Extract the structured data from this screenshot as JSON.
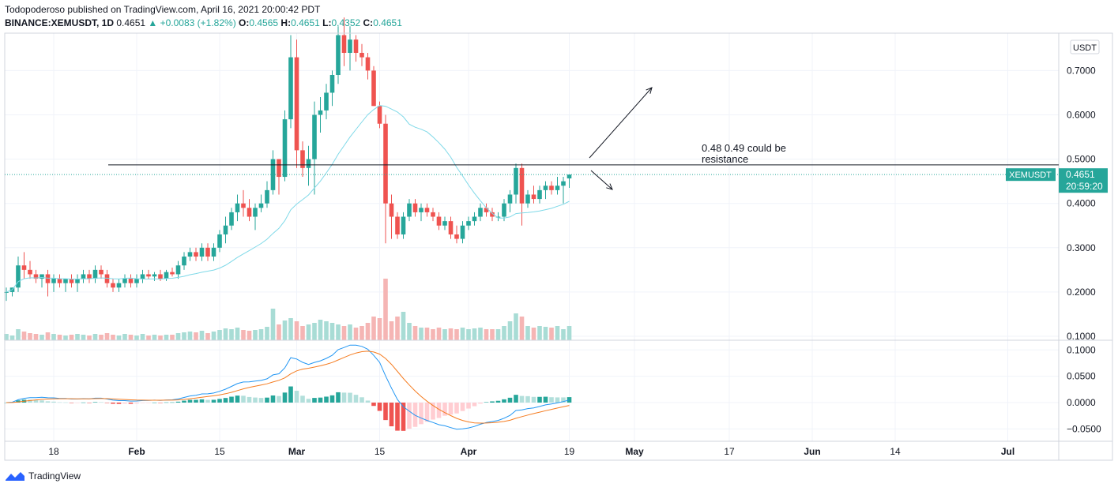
{
  "header": {
    "publisher_line": "Todopoderoso published on TradingView.com, April 16, 2021 20:00:42 PDT",
    "publisher": "Todopoderoso",
    "symbol_line_prefix": "BINANCE:XEMUSDT, 1D",
    "last": "0.4651",
    "change": "▲ +0.0083 (+1.82%)",
    "o_label": "O:",
    "o": "0.4565",
    "h_label": "H:",
    "h": "0.4651",
    "l_label": "L:",
    "l": "0.4352",
    "c_label": "C:",
    "c": "0.4651"
  },
  "footer": {
    "brand": "TradingView"
  },
  "colors": {
    "up": "#26a69a",
    "down": "#ef5350",
    "ma": "#7fd9e8",
    "macd": "#2196f3",
    "signal": "#f57c20",
    "grid": "#f0f3fa"
  },
  "chart_data": {
    "type": "candlestick",
    "currency_label": "USDT",
    "price_ticks": [
      "0.7000",
      "0.6000",
      "0.5000",
      "0.4000",
      "0.3000",
      "0.2000",
      "0.1000"
    ],
    "price_tick_values": [
      0.7,
      0.6,
      0.5,
      0.4,
      0.3,
      0.2,
      0.1
    ],
    "macd_ticks": [
      "0.1000",
      "0.0500",
      "0.0000",
      "−0.0500"
    ],
    "macd_tick_values": [
      0.1,
      0.05,
      0.0,
      -0.05
    ],
    "x_ticks": [
      "18",
      "Feb",
      "15",
      "Mar",
      "15",
      "Apr",
      "19",
      "May",
      "17",
      "Jun",
      "14",
      "Jul"
    ],
    "x_tick_days": [
      8,
      22,
      36,
      49,
      63,
      78,
      95,
      106,
      122,
      136,
      150,
      169
    ],
    "last_label": {
      "symbol": "XEMUSDT",
      "price": "0.4651",
      "countdown": "20:59:20"
    },
    "annotation": {
      "line1": "0.48 0.49  could be",
      "line2": "resistance",
      "level": 0.487
    },
    "candles": [
      [
        0.2,
        0.21,
        0.18,
        0.2
      ],
      [
        0.2,
        0.21,
        0.19,
        0.21
      ],
      [
        0.21,
        0.28,
        0.2,
        0.26
      ],
      [
        0.26,
        0.29,
        0.23,
        0.25
      ],
      [
        0.25,
        0.27,
        0.23,
        0.24
      ],
      [
        0.24,
        0.25,
        0.22,
        0.23
      ],
      [
        0.23,
        0.24,
        0.21,
        0.24
      ],
      [
        0.24,
        0.25,
        0.19,
        0.22
      ],
      [
        0.22,
        0.24,
        0.2,
        0.23
      ],
      [
        0.23,
        0.24,
        0.21,
        0.22
      ],
      [
        0.22,
        0.23,
        0.2,
        0.23
      ],
      [
        0.23,
        0.24,
        0.21,
        0.22
      ],
      [
        0.22,
        0.24,
        0.2,
        0.23
      ],
      [
        0.23,
        0.25,
        0.22,
        0.24
      ],
      [
        0.24,
        0.25,
        0.22,
        0.23
      ],
      [
        0.23,
        0.26,
        0.22,
        0.25
      ],
      [
        0.25,
        0.26,
        0.23,
        0.24
      ],
      [
        0.24,
        0.25,
        0.21,
        0.22
      ],
      [
        0.22,
        0.23,
        0.2,
        0.21
      ],
      [
        0.21,
        0.23,
        0.2,
        0.22
      ],
      [
        0.22,
        0.24,
        0.21,
        0.23
      ],
      [
        0.23,
        0.24,
        0.21,
        0.22
      ],
      [
        0.22,
        0.24,
        0.21,
        0.23
      ],
      [
        0.23,
        0.25,
        0.22,
        0.24
      ],
      [
        0.24,
        0.25,
        0.23,
        0.235
      ],
      [
        0.235,
        0.245,
        0.225,
        0.24
      ],
      [
        0.24,
        0.25,
        0.225,
        0.23
      ],
      [
        0.23,
        0.25,
        0.225,
        0.245
      ],
      [
        0.245,
        0.255,
        0.235,
        0.24
      ],
      [
        0.24,
        0.27,
        0.23,
        0.26
      ],
      [
        0.26,
        0.29,
        0.25,
        0.28
      ],
      [
        0.28,
        0.3,
        0.27,
        0.29
      ],
      [
        0.29,
        0.3,
        0.27,
        0.28
      ],
      [
        0.28,
        0.31,
        0.27,
        0.3
      ],
      [
        0.3,
        0.31,
        0.27,
        0.28
      ],
      [
        0.28,
        0.31,
        0.27,
        0.3
      ],
      [
        0.3,
        0.34,
        0.29,
        0.33
      ],
      [
        0.33,
        0.37,
        0.31,
        0.35
      ],
      [
        0.35,
        0.39,
        0.34,
        0.38
      ],
      [
        0.38,
        0.42,
        0.36,
        0.4
      ],
      [
        0.4,
        0.43,
        0.37,
        0.39
      ],
      [
        0.39,
        0.41,
        0.36,
        0.37
      ],
      [
        0.37,
        0.4,
        0.34,
        0.39
      ],
      [
        0.39,
        0.42,
        0.38,
        0.4
      ],
      [
        0.4,
        0.45,
        0.39,
        0.43
      ],
      [
        0.43,
        0.52,
        0.42,
        0.5
      ],
      [
        0.5,
        0.5,
        0.42,
        0.46
      ],
      [
        0.46,
        0.61,
        0.45,
        0.59
      ],
      [
        0.59,
        0.78,
        0.57,
        0.73
      ],
      [
        0.73,
        0.77,
        0.48,
        0.52
      ],
      [
        0.52,
        0.54,
        0.46,
        0.48
      ],
      [
        0.48,
        0.53,
        0.44,
        0.5
      ],
      [
        0.5,
        0.63,
        0.42,
        0.6
      ],
      [
        0.6,
        0.64,
        0.56,
        0.61
      ],
      [
        0.61,
        0.67,
        0.59,
        0.65
      ],
      [
        0.65,
        0.7,
        0.62,
        0.69
      ],
      [
        0.69,
        0.8,
        0.67,
        0.78
      ],
      [
        0.78,
        0.82,
        0.71,
        0.74
      ],
      [
        0.74,
        0.8,
        0.7,
        0.77
      ],
      [
        0.77,
        0.78,
        0.72,
        0.74
      ],
      [
        0.74,
        0.76,
        0.71,
        0.73
      ],
      [
        0.73,
        0.74,
        0.68,
        0.7
      ],
      [
        0.7,
        0.71,
        0.62,
        0.62
      ],
      [
        0.62,
        0.63,
        0.57,
        0.58
      ],
      [
        0.58,
        0.6,
        0.31,
        0.4
      ],
      [
        0.4,
        0.42,
        0.32,
        0.37
      ],
      [
        0.37,
        0.38,
        0.32,
        0.33
      ],
      [
        0.33,
        0.38,
        0.32,
        0.37
      ],
      [
        0.37,
        0.41,
        0.36,
        0.4
      ],
      [
        0.4,
        0.41,
        0.37,
        0.38
      ],
      [
        0.38,
        0.4,
        0.36,
        0.39
      ],
      [
        0.39,
        0.4,
        0.37,
        0.38
      ],
      [
        0.38,
        0.39,
        0.36,
        0.37
      ],
      [
        0.37,
        0.38,
        0.34,
        0.35
      ],
      [
        0.35,
        0.37,
        0.34,
        0.36
      ],
      [
        0.36,
        0.37,
        0.32,
        0.33
      ],
      [
        0.33,
        0.35,
        0.31,
        0.32
      ],
      [
        0.32,
        0.36,
        0.31,
        0.35
      ],
      [
        0.35,
        0.37,
        0.34,
        0.36
      ],
      [
        0.36,
        0.38,
        0.35,
        0.37
      ],
      [
        0.37,
        0.4,
        0.36,
        0.39
      ],
      [
        0.39,
        0.4,
        0.37,
        0.38
      ],
      [
        0.38,
        0.39,
        0.36,
        0.37
      ],
      [
        0.37,
        0.38,
        0.36,
        0.37
      ],
      [
        0.37,
        0.41,
        0.36,
        0.4
      ],
      [
        0.4,
        0.43,
        0.38,
        0.42
      ],
      [
        0.42,
        0.49,
        0.4,
        0.48
      ],
      [
        0.48,
        0.49,
        0.35,
        0.4
      ],
      [
        0.4,
        0.43,
        0.39,
        0.42
      ],
      [
        0.42,
        0.44,
        0.4,
        0.41
      ],
      [
        0.41,
        0.44,
        0.4,
        0.43
      ],
      [
        0.43,
        0.45,
        0.41,
        0.44
      ],
      [
        0.44,
        0.45,
        0.42,
        0.43
      ],
      [
        0.43,
        0.46,
        0.42,
        0.44
      ],
      [
        0.44,
        0.46,
        0.4,
        0.45
      ],
      [
        0.4565,
        0.4651,
        0.4352,
        0.4651
      ]
    ],
    "volume": [
      8,
      6,
      14,
      11,
      9,
      8,
      7,
      10,
      8,
      7,
      6,
      7,
      8,
      7,
      6,
      8,
      7,
      9,
      7,
      6,
      8,
      7,
      6,
      8,
      6,
      7,
      6,
      7,
      7,
      9,
      10,
      11,
      10,
      12,
      9,
      11,
      13,
      15,
      14,
      16,
      13,
      12,
      13,
      14,
      17,
      40,
      20,
      25,
      28,
      24,
      18,
      20,
      22,
      26,
      24,
      22,
      20,
      18,
      20,
      16,
      18,
      22,
      30,
      28,
      78,
      24,
      30,
      36,
      22,
      18,
      16,
      16,
      14,
      16,
      14,
      15,
      14,
      16,
      14,
      15,
      16,
      14,
      14,
      14,
      18,
      24,
      34,
      30,
      18,
      16,
      18,
      17,
      16,
      18,
      14,
      18
    ]
  }
}
